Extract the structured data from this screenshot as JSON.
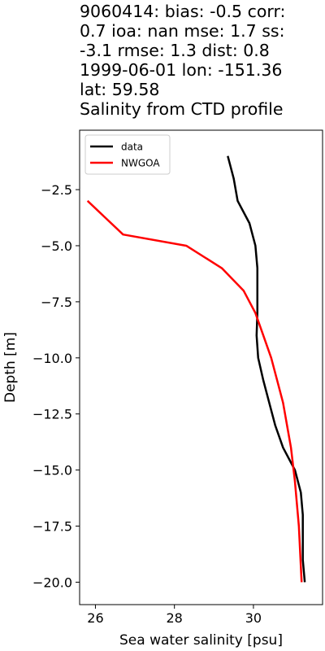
{
  "chart_data": {
    "type": "line",
    "title_lines": [
      "9060414: bias: -0.5  corr:",
      "0.7  ioa: nan  mse: 1.7  ss:",
      "-3.1  rmse: 1.3  dist: 0.8",
      "1999-06-01 lon: -151.36",
      "lat: 59.58",
      "Salinity from CTD profile"
    ],
    "xlabel": "Sea water salinity [psu]",
    "ylabel": "Depth [m]",
    "xlim": [
      25.6,
      31.75
    ],
    "ylim": [
      -21.0,
      0.15
    ],
    "xticks": [
      26,
      28,
      30
    ],
    "xtick_labels": [
      "26",
      "28",
      "30"
    ],
    "yticks": [
      -2.5,
      -5.0,
      -7.5,
      -10.0,
      -12.5,
      -15.0,
      -17.5,
      -20.0
    ],
    "ytick_labels": [
      "−2.5",
      "−5.0",
      "−7.5",
      "−10.0",
      "−12.5",
      "−15.0",
      "−17.5",
      "−20.0"
    ],
    "grid": false,
    "legend_position": "top-left",
    "series": [
      {
        "name": "data",
        "color": "#000000",
        "x": [
          29.35,
          29.5,
          29.6,
          29.9,
          30.05,
          30.1,
          30.1,
          30.1,
          30.08,
          30.12,
          30.25,
          30.4,
          30.55,
          30.75,
          31.05,
          31.2,
          31.25,
          31.25,
          31.3
        ],
        "y": [
          -1.0,
          -2.0,
          -3.0,
          -4.0,
          -5.0,
          -6.0,
          -7.0,
          -8.0,
          -9.0,
          -10.0,
          -11.0,
          -12.0,
          -13.0,
          -14.0,
          -15.0,
          -16.0,
          -17.0,
          -19.0,
          -20.0
        ]
      },
      {
        "name": "NWGOA",
        "color": "#ff0000",
        "x": [
          25.8,
          26.7,
          28.3,
          29.2,
          29.75,
          30.05,
          30.25,
          30.45,
          30.6,
          30.75,
          30.85,
          30.95,
          31.05,
          31.15,
          31.22
        ],
        "y": [
          -3.0,
          -4.5,
          -5.0,
          -6.0,
          -7.0,
          -8.0,
          -9.0,
          -10.0,
          -11.0,
          -12.0,
          -13.0,
          -14.0,
          -15.5,
          -17.5,
          -20.0
        ]
      }
    ]
  }
}
